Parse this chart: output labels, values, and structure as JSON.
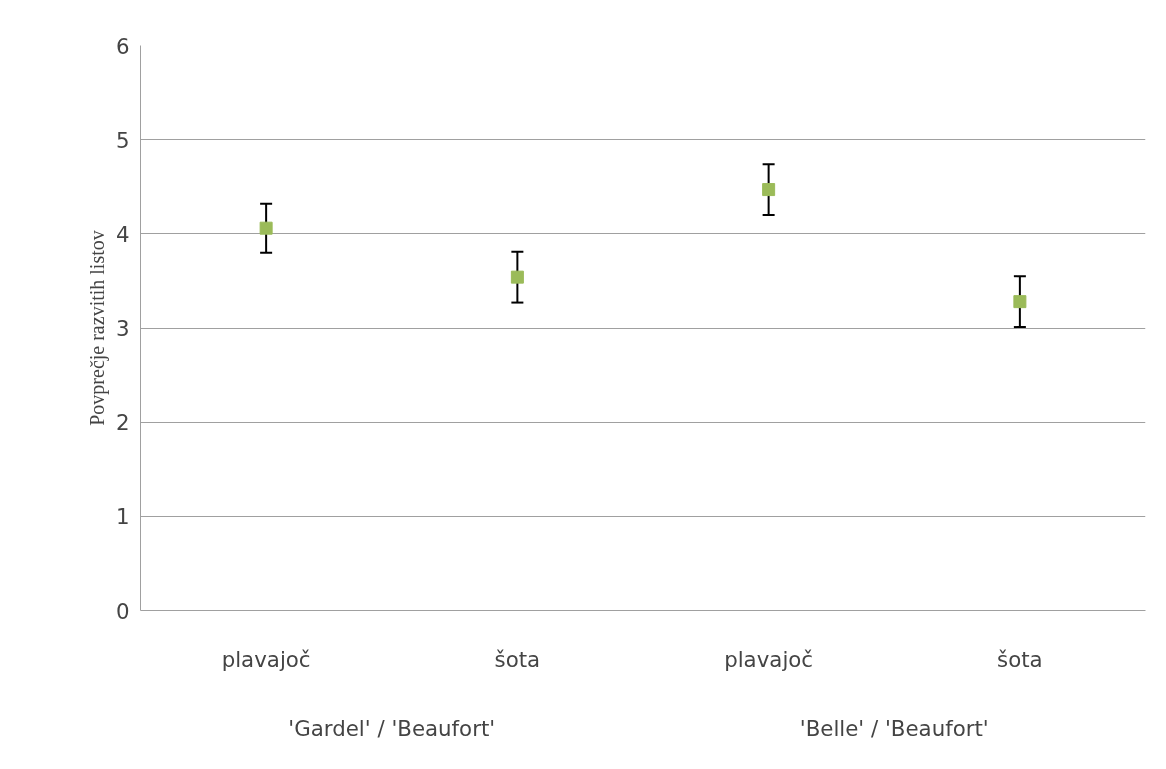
{
  "chart_data": {
    "type": "scatter",
    "ylabel": "Povprečje razvitih listov",
    "categories": [
      "plavajoč",
      "šota",
      "plavajoč",
      "šota"
    ],
    "series": [
      {
        "color": "#9bbb59",
        "values": [
          4.06,
          3.54,
          4.47,
          3.28
        ],
        "errors": [
          0.26,
          0.27,
          0.27,
          0.27
        ]
      }
    ],
    "annotations": [
      "'Gardel' / 'Beaufort'",
      "'Belle' / 'Beaufort'"
    ],
    "ylim": [
      0,
      6
    ],
    "yticks": [
      0,
      1,
      2,
      3,
      4,
      5,
      6
    ],
    "grid": "y"
  }
}
